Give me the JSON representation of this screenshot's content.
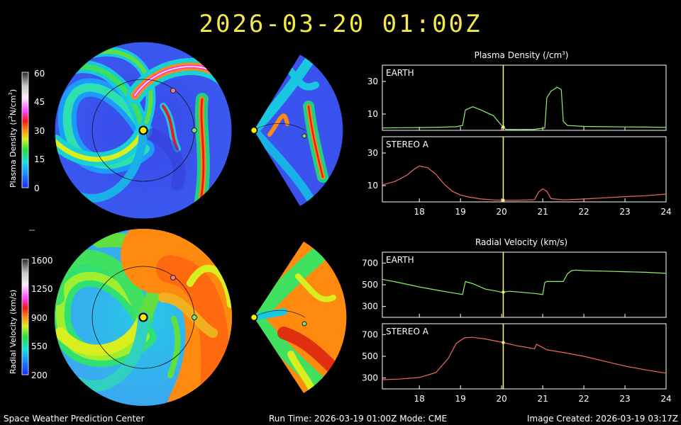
{
  "title": "2026-03-20  01:00Z",
  "footer": {
    "left": "Space Weather Prediction Center",
    "center": "Run Time: 2026-03-19 01:00Z  Mode: CME",
    "right": "Image Created: 2026-03-19 03:17Z"
  },
  "colorbars": {
    "density": {
      "label": "Plasma Density (r",
      "label_sup": "2",
      "label_mid": "N/cm",
      "label_sup2": "3",
      "label_end": ")",
      "ticks": [
        "60",
        "45",
        "30",
        "15",
        "0"
      ]
    },
    "velocity": {
      "label": "Radial Velocity (km/s)",
      "ticks": [
        "1600",
        "1250",
        "900",
        "550",
        "200"
      ]
    }
  },
  "colors": {
    "earth_line": "#8ef06a",
    "stereo_line": "#f06a5a",
    "cursor": "#f5f07a",
    "axis": "#ffffff",
    "title": "#f5e84a",
    "earth_marker": "#7fdc7f",
    "stereo_marker": "#f08080",
    "sun": "#ffee00"
  },
  "chart_data": [
    {
      "type": "line",
      "title": "Plasma Density (/cm",
      "title_sup": "3",
      "title_end": ")",
      "panel_label": "EARTH",
      "xlim": [
        17.1,
        24
      ],
      "ylim": [
        0,
        40
      ],
      "yticks": [
        10,
        30
      ],
      "cursor_x": 20.04,
      "series": [
        {
          "color_key": "earth_line",
          "x": [
            17.1,
            17.5,
            18.0,
            18.5,
            18.9,
            19.05,
            19.12,
            19.3,
            19.5,
            19.8,
            20.0,
            20.1,
            20.4,
            20.8,
            21.05,
            21.1,
            21.2,
            21.35,
            21.45,
            21.5,
            21.6,
            22.0,
            22.5,
            23.0,
            23.5,
            24.0
          ],
          "y": [
            1.5,
            1.6,
            1.7,
            1.9,
            2.2,
            3.0,
            12.5,
            14.5,
            12.5,
            9.0,
            3.0,
            0.6,
            0.5,
            0.6,
            1.5,
            20.0,
            24.0,
            26.5,
            25.0,
            5.5,
            3.0,
            2.4,
            2.2,
            2.1,
            2.0,
            1.8
          ]
        }
      ]
    },
    {
      "type": "line",
      "panel_label": "STEREO A",
      "xlim": [
        17.1,
        24
      ],
      "ylim": [
        0,
        40
      ],
      "yticks": [
        10,
        30
      ],
      "xticks": [
        18,
        19,
        20,
        21,
        22,
        23,
        24
      ],
      "cursor_x": 20.04,
      "series": [
        {
          "color_key": "stereo_line",
          "x": [
            17.1,
            17.4,
            17.7,
            17.9,
            18.0,
            18.2,
            18.4,
            18.6,
            18.8,
            19.0,
            19.2,
            19.5,
            19.8,
            20.0,
            20.4,
            20.8,
            20.9,
            21.0,
            21.1,
            21.2,
            21.5,
            22.0,
            22.5,
            23.0,
            23.5,
            24.0
          ],
          "y": [
            10.5,
            12.5,
            16.5,
            20.5,
            22.0,
            21.0,
            17.0,
            11.0,
            6.5,
            4.2,
            3.0,
            1.8,
            1.2,
            1.0,
            1.0,
            1.4,
            6.0,
            8.0,
            6.5,
            2.0,
            1.2,
            1.8,
            2.5,
            3.2,
            3.8,
            4.8
          ]
        }
      ]
    },
    {
      "type": "line",
      "title": "Radial Velocity (km/s)",
      "panel_label": "EARTH",
      "xlim": [
        17.1,
        24
      ],
      "ylim": [
        200,
        800
      ],
      "yticks": [
        300,
        500,
        700
      ],
      "cursor_x": 20.04,
      "series": [
        {
          "color_key": "earth_line",
          "x": [
            17.1,
            17.5,
            18.0,
            18.5,
            18.9,
            19.05,
            19.12,
            19.3,
            19.6,
            19.9,
            20.0,
            20.2,
            20.5,
            20.8,
            21.0,
            21.05,
            21.1,
            21.5,
            21.6,
            21.7,
            21.8,
            22.0,
            22.5,
            23.0,
            23.5,
            24.0
          ],
          "y": [
            550,
            520,
            480,
            445,
            420,
            410,
            530,
            510,
            460,
            440,
            430,
            440,
            430,
            420,
            410,
            520,
            530,
            530,
            600,
            630,
            635,
            630,
            625,
            620,
            615,
            605
          ]
        }
      ]
    },
    {
      "type": "line",
      "panel_label": "STEREO A",
      "xlim": [
        17.1,
        24
      ],
      "ylim": [
        200,
        800
      ],
      "yticks": [
        300,
        500,
        700
      ],
      "xticks": [
        18,
        19,
        20,
        21,
        22,
        23,
        24
      ],
      "cursor_x": 20.04,
      "series": [
        {
          "color_key": "stereo_line",
          "x": [
            17.1,
            17.5,
            18.0,
            18.4,
            18.7,
            18.9,
            19.1,
            19.3,
            19.6,
            20.0,
            20.4,
            20.8,
            20.85,
            20.95,
            21.1,
            21.5,
            22.0,
            22.5,
            23.0,
            23.5,
            24.0
          ],
          "y": [
            285,
            290,
            305,
            350,
            480,
            620,
            670,
            675,
            660,
            630,
            595,
            570,
            610,
            590,
            560,
            535,
            500,
            455,
            410,
            375,
            345
          ]
        }
      ]
    }
  ]
}
